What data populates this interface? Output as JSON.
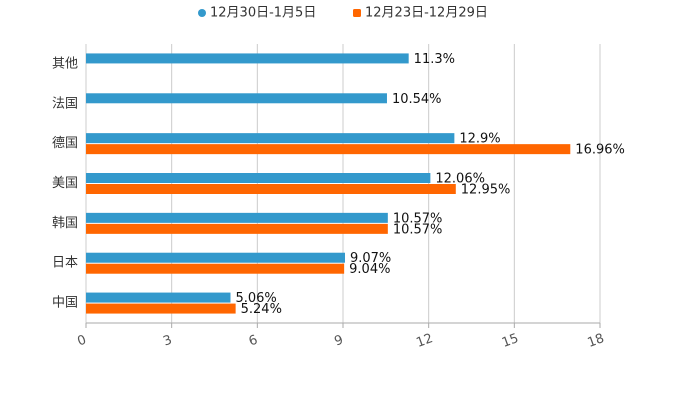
{
  "chart_data": {
    "type": "bar",
    "orientation": "horizontal",
    "categories": [
      "其他",
      "法国",
      "德国",
      "美国",
      "韩国",
      "日本",
      "中国"
    ],
    "series": [
      {
        "name": "12月30日-1月5日",
        "color": "#3399cc",
        "values": [
          11.3,
          10.54,
          12.9,
          12.06,
          10.57,
          9.07,
          5.06
        ],
        "labels": [
          "11.3%",
          "10.54%",
          "12.9%",
          "12.06%",
          "10.57%",
          "9.07%",
          "5.06%"
        ]
      },
      {
        "name": "12月23日-12月29日",
        "color": "#ff6600",
        "values": [
          null,
          null,
          16.96,
          12.95,
          10.57,
          9.04,
          5.24
        ],
        "labels": [
          null,
          null,
          "16.96%",
          "12.95%",
          "10.57%",
          "9.04%",
          "5.24%"
        ]
      }
    ],
    "xlim": [
      0,
      18
    ],
    "xticks": [
      0,
      3,
      6,
      9,
      12,
      15,
      18
    ],
    "grid": true,
    "legend": "top-center",
    "title": "",
    "xlabel": "",
    "ylabel": ""
  }
}
